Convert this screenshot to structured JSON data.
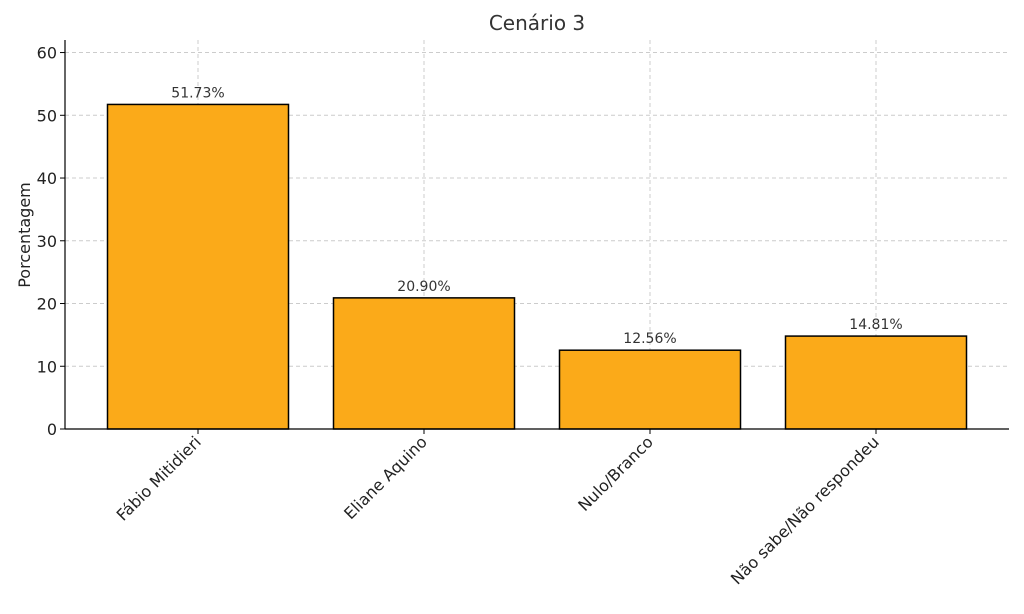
{
  "chart_data": {
    "type": "bar",
    "title": "Cenário 3",
    "xlabel": "",
    "ylabel": "Porcentagem",
    "categories": [
      "Fábio Mitidieri",
      "Eliane Aquino",
      "Nulo/Branco",
      "Não sabe/Não respondeu"
    ],
    "values": [
      51.73,
      20.9,
      12.56,
      14.81
    ],
    "value_labels": [
      "51.73%",
      "20.90%",
      "12.56%",
      "14.81%"
    ],
    "ylim": [
      0,
      62
    ],
    "yticks": [
      0,
      10,
      20,
      30,
      40,
      50,
      60
    ],
    "grid": true,
    "bar_color": "#FBAA19",
    "edge_color": "#000000"
  }
}
